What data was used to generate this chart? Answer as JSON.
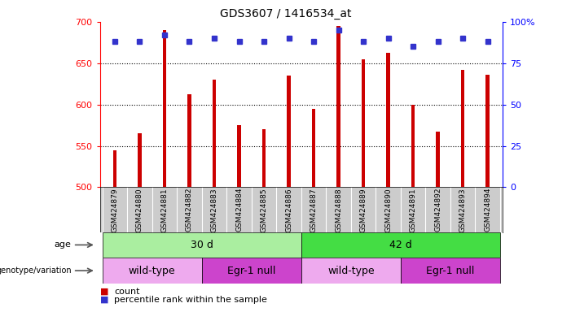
{
  "title": "GDS3607 / 1416534_at",
  "samples": [
    "GSM424879",
    "GSM424880",
    "GSM424881",
    "GSM424882",
    "GSM424883",
    "GSM424884",
    "GSM424885",
    "GSM424886",
    "GSM424887",
    "GSM424888",
    "GSM424889",
    "GSM424890",
    "GSM424891",
    "GSM424892",
    "GSM424893",
    "GSM424894"
  ],
  "counts": [
    545,
    565,
    690,
    612,
    630,
    575,
    570,
    635,
    595,
    695,
    655,
    663,
    600,
    567,
    642,
    636
  ],
  "percentiles": [
    88,
    88,
    92,
    88,
    90,
    88,
    88,
    90,
    88,
    95,
    88,
    90,
    85,
    88,
    90,
    88
  ],
  "ymin": 500,
  "ymax": 700,
  "yticks": [
    500,
    550,
    600,
    650,
    700
  ],
  "y2ticks": [
    0,
    25,
    50,
    75,
    100
  ],
  "bar_color": "#cc0000",
  "dot_color": "#3333cc",
  "age_groups": [
    {
      "label": "30 d",
      "start": 0,
      "end": 8,
      "color": "#aaeea0"
    },
    {
      "label": "42 d",
      "start": 8,
      "end": 16,
      "color": "#44dd44"
    }
  ],
  "genotype_groups": [
    {
      "label": "wild-type",
      "start": 0,
      "end": 4,
      "color": "#eeaaee"
    },
    {
      "label": "Egr-1 null",
      "start": 4,
      "end": 8,
      "color": "#cc44cc"
    },
    {
      "label": "wild-type",
      "start": 8,
      "end": 12,
      "color": "#eeaaee"
    },
    {
      "label": "Egr-1 null",
      "start": 12,
      "end": 16,
      "color": "#cc44cc"
    }
  ],
  "legend_count_color": "#cc0000",
  "legend_dot_color": "#3333cc",
  "background_color": "#ffffff",
  "label_bg": "#cccccc"
}
